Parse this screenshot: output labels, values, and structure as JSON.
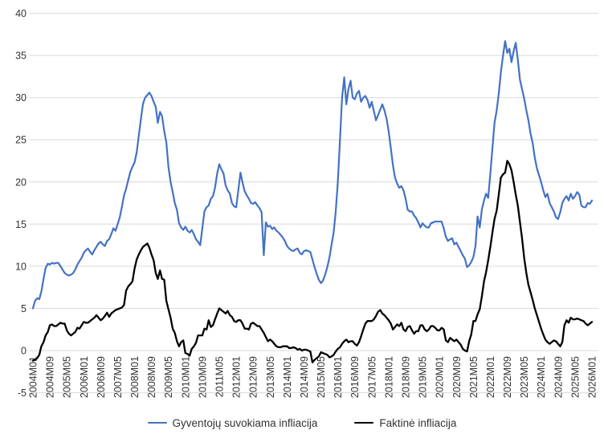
{
  "chart_data": {
    "type": "line",
    "title": "",
    "xlabel": "",
    "ylabel": "",
    "ylim": [
      -5,
      40
    ],
    "y_ticks": [
      40,
      35,
      30,
      25,
      20,
      15,
      10,
      5,
      0,
      -5
    ],
    "grid": "horizontal",
    "gridline_color": "#D9D9D9",
    "tick_text_color": "#333333",
    "legend_position": "bottom",
    "x_start": "2004M01",
    "x_end": "2026M01",
    "x_step_months": 1,
    "x_tick_every_points": 8,
    "x_tick_labels": [
      "2004M01",
      "2004M09",
      "2005M05",
      "2006M01",
      "2006M09",
      "2007M05",
      "2008M01",
      "2008M09",
      "2009M05",
      "2010M01",
      "2010M09",
      "2011M05",
      "2012M01",
      "2012M09",
      "2013M05",
      "2014M01",
      "2014M09",
      "2015M05",
      "2016M01",
      "2016M09",
      "2017M05",
      "2018M01",
      "2018M09",
      "2019M05",
      "2020M01",
      "2020M09",
      "2021M05",
      "2022M01",
      "2022M09",
      "2023M05",
      "2024M01",
      "2024M09",
      "2025M05",
      "2026M01"
    ],
    "series": [
      {
        "name": "Gyventojų suvokiama infliacija",
        "color": "#4472C4",
        "width": 2.2,
        "values": [
          5.0,
          5.9,
          6.2,
          6.1,
          7.0,
          8.5,
          9.8,
          10.3,
          10.2,
          10.4,
          10.3,
          10.4,
          10.4,
          10.0,
          9.6,
          9.2,
          9.0,
          8.9,
          9.0,
          9.2,
          9.6,
          10.2,
          10.6,
          11.0,
          11.6,
          11.9,
          12.1,
          11.7,
          11.4,
          11.9,
          12.3,
          12.7,
          12.9,
          12.6,
          12.4,
          13.0,
          13.2,
          13.8,
          14.5,
          14.2,
          15.0,
          15.8,
          17.0,
          18.4,
          19.2,
          20.2,
          21.2,
          21.8,
          22.3,
          23.5,
          25.5,
          27.5,
          29.3,
          30.0,
          30.3,
          30.6,
          30.2,
          29.5,
          28.9,
          27.0,
          28.3,
          27.8,
          26.0,
          24.7,
          21.8,
          20.0,
          18.8,
          17.5,
          16.7,
          15.1,
          14.6,
          14.3,
          14.7,
          14.2,
          14.0,
          14.3,
          13.8,
          13.2,
          12.9,
          12.5,
          14.5,
          16.5,
          17.0,
          17.2,
          18.0,
          18.3,
          19.3,
          21.0,
          22.1,
          21.5,
          21.0,
          19.6,
          19.0,
          18.6,
          17.5,
          17.1,
          17.0,
          19.0,
          21.1,
          19.9,
          18.9,
          18.4,
          18.0,
          17.5,
          17.4,
          17.6,
          17.2,
          16.9,
          16.4,
          11.3,
          15.2,
          14.7,
          14.8,
          14.4,
          14.6,
          14.2,
          14.0,
          13.7,
          13.4,
          13.0,
          12.4,
          12.1,
          11.9,
          11.8,
          12.0,
          12.1,
          11.6,
          11.4,
          11.8,
          11.9,
          11.8,
          11.7,
          10.8,
          9.9,
          9.1,
          8.4,
          8.0,
          8.3,
          9.0,
          9.9,
          11.0,
          12.5,
          14.0,
          16.5,
          20.0,
          25.0,
          30.0,
          32.4,
          29.2,
          31.0,
          32.0,
          30.0,
          29.8,
          30.5,
          30.8,
          29.5,
          30.0,
          30.2,
          29.7,
          28.8,
          29.5,
          28.4,
          27.3,
          27.9,
          28.6,
          29.2,
          28.5,
          27.5,
          26.0,
          24.0,
          22.0,
          20.5,
          19.8,
          19.3,
          19.5,
          19.0,
          18.0,
          16.7,
          16.5,
          16.5,
          16.0,
          15.7,
          15.2,
          14.6,
          15.1,
          14.8,
          14.6,
          14.6,
          15.1,
          15.2,
          15.3,
          15.3,
          15.3,
          15.3,
          14.5,
          13.5,
          13.0,
          13.2,
          13.3,
          12.6,
          12.8,
          12.3,
          11.8,
          11.3,
          10.9,
          9.9,
          10.1,
          10.5,
          11.1,
          12.4,
          15.9,
          14.6,
          16.7,
          17.8,
          18.6,
          18.1,
          21.0,
          24.0,
          27.0,
          28.5,
          30.5,
          33.0,
          35.0,
          36.7,
          35.3,
          35.8,
          34.2,
          35.5,
          36.5,
          34.5,
          32.1,
          31.0,
          29.9,
          28.5,
          27.3,
          25.7,
          24.6,
          22.9,
          21.6,
          20.8,
          20.0,
          19.0,
          18.2,
          18.6,
          17.5,
          17.0,
          16.5,
          15.8,
          15.6,
          16.4,
          17.5,
          18.0,
          18.3,
          17.8,
          18.6,
          18.0,
          18.3,
          18.8,
          18.5,
          17.2,
          17.0,
          17.0,
          17.5,
          17.4,
          17.8
        ]
      },
      {
        "name": "Faktinė infliacija",
        "color": "#000000",
        "width": 2.3,
        "values": [
          -1.2,
          -1.1,
          -0.9,
          -0.5,
          0.5,
          1.0,
          1.8,
          2.2,
          3.0,
          3.1,
          2.9,
          2.9,
          3.1,
          3.3,
          3.2,
          3.2,
          2.4,
          2.0,
          1.8,
          2.0,
          2.2,
          2.7,
          2.6,
          3.0,
          3.4,
          3.3,
          3.3,
          3.5,
          3.7,
          3.9,
          4.2,
          3.9,
          3.6,
          3.8,
          4.1,
          4.5,
          4.0,
          4.4,
          4.6,
          4.8,
          4.9,
          5.0,
          5.1,
          5.4,
          7.1,
          7.6,
          7.9,
          8.2,
          9.7,
          10.8,
          11.4,
          11.9,
          12.3,
          12.5,
          12.7,
          12.2,
          11.4,
          10.7,
          9.2,
          8.5,
          9.5,
          8.5,
          8.4,
          5.9,
          4.9,
          3.9,
          2.6,
          2.1,
          1.1,
          0.5,
          1.0,
          1.2,
          -0.3,
          -0.4,
          -0.6,
          0.2,
          0.5,
          0.9,
          1.8,
          1.8,
          1.8,
          2.6,
          2.5,
          3.6,
          2.8,
          3.0,
          3.7,
          4.4,
          5.0,
          4.8,
          4.6,
          4.4,
          4.7,
          4.2,
          4.0,
          3.5,
          3.4,
          3.6,
          3.6,
          3.2,
          2.6,
          2.6,
          2.5,
          3.2,
          3.3,
          3.1,
          2.9,
          2.9,
          2.5,
          2.1,
          1.6,
          1.1,
          1.3,
          1.1,
          0.8,
          0.5,
          0.4,
          0.4,
          0.5,
          0.5,
          0.5,
          0.3,
          0.3,
          0.4,
          0.3,
          0.1,
          0.2,
          0.0,
          0.1,
          0.1,
          0.0,
          -0.1,
          -1.4,
          -1.1,
          -0.9,
          -0.7,
          -0.2,
          -0.3,
          -0.4,
          -0.5,
          -0.8,
          -0.7,
          -0.5,
          -0.1,
          0.2,
          0.4,
          0.8,
          1.1,
          1.3,
          1.0,
          1.1,
          1.1,
          0.8,
          0.6,
          1.0,
          1.7,
          2.5,
          3.2,
          3.5,
          3.5,
          3.5,
          3.7,
          4.1,
          4.6,
          4.8,
          4.4,
          4.2,
          3.9,
          3.6,
          3.2,
          2.5,
          2.8,
          3.1,
          2.9,
          3.3,
          2.5,
          2.3,
          2.8,
          2.9,
          2.4,
          2.0,
          2.3,
          2.3,
          3.0,
          3.0,
          2.5,
          2.3,
          2.5,
          2.9,
          2.9,
          2.7,
          2.4,
          2.4,
          2.7,
          2.5,
          1.2,
          1.0,
          1.5,
          1.3,
          1.1,
          1.3,
          1.0,
          0.7,
          0.2,
          0.0,
          -0.1,
          1.1,
          1.9,
          3.5,
          3.5,
          4.3,
          4.9,
          6.4,
          8.2,
          9.3,
          10.7,
          12.3,
          14.0,
          15.6,
          16.6,
          18.5,
          20.5,
          20.9,
          21.1,
          22.5,
          22.1,
          21.4,
          20.0,
          18.5,
          17.2,
          15.2,
          13.3,
          11.0,
          9.2,
          7.8,
          6.9,
          6.0,
          5.0,
          4.2,
          3.4,
          2.6,
          1.9,
          1.3,
          1.0,
          0.8,
          1.0,
          1.2,
          1.1,
          0.8,
          0.5,
          1.0,
          3.0,
          3.6,
          3.3,
          3.9,
          3.7,
          3.7,
          3.8,
          3.7,
          3.6,
          3.5,
          3.2,
          3.0,
          3.2,
          3.4
        ]
      }
    ]
  }
}
